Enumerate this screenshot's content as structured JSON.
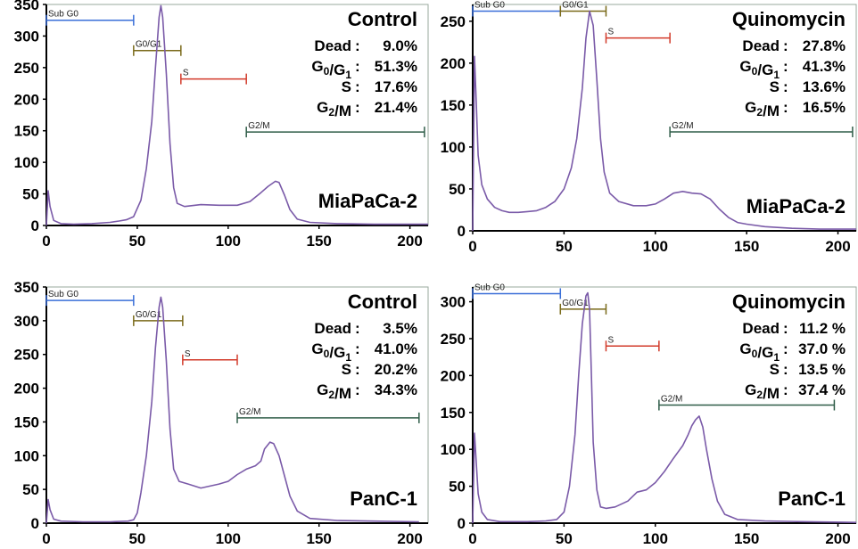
{
  "chart_data": [
    {
      "type": "line",
      "title": "Control",
      "cell_line": "MiaPaCa-2",
      "xlim": [
        0,
        210
      ],
      "ylim": [
        0,
        350
      ],
      "x_ticks": [
        "0",
        "50",
        "100",
        "150",
        "200"
      ],
      "y_ticks": [
        "0",
        "50",
        "100",
        "150",
        "200",
        "250",
        "300",
        "350"
      ],
      "stats": [
        {
          "label": "Dead",
          "value": "9.0%"
        },
        {
          "label": "G0/G1",
          "value": "51.3%"
        },
        {
          "label": "S",
          "value": "17.6%"
        },
        {
          "label": "G2/M",
          "value": "21.4%"
        }
      ],
      "gates": [
        {
          "label": "Sub G0",
          "start": 0,
          "end": 48,
          "y": 325,
          "color": "#3a6fd8"
        },
        {
          "label": "G0/G1",
          "start": 48,
          "end": 74,
          "y": 277,
          "color": "#7a6a1a"
        },
        {
          "label": "S",
          "start": 74,
          "end": 110,
          "y": 232,
          "color": "#d23a2a"
        },
        {
          "label": "G2/M",
          "start": 110,
          "end": 208,
          "y": 148,
          "color": "#2f5d48"
        }
      ],
      "series": [
        {
          "values": [
            [
              0,
              0
            ],
            [
              1,
              55
            ],
            [
              2,
              30
            ],
            [
              4,
              8
            ],
            [
              8,
              3
            ],
            [
              15,
              2
            ],
            [
              25,
              3
            ],
            [
              35,
              5
            ],
            [
              40,
              7
            ],
            [
              44,
              9
            ],
            [
              48,
              14
            ],
            [
              52,
              40
            ],
            [
              55,
              90
            ],
            [
              58,
              165
            ],
            [
              60,
              250
            ],
            [
              62,
              330
            ],
            [
              63,
              348
            ],
            [
              64,
              330
            ],
            [
              66,
              240
            ],
            [
              68,
              130
            ],
            [
              70,
              60
            ],
            [
              72,
              35
            ],
            [
              76,
              30
            ],
            [
              85,
              33
            ],
            [
              95,
              32
            ],
            [
              105,
              32
            ],
            [
              112,
              38
            ],
            [
              118,
              52
            ],
            [
              122,
              62
            ],
            [
              126,
              70
            ],
            [
              128,
              68
            ],
            [
              131,
              48
            ],
            [
              134,
              25
            ],
            [
              138,
              10
            ],
            [
              145,
              5
            ],
            [
              160,
              3
            ],
            [
              180,
              2
            ],
            [
              200,
              2
            ],
            [
              210,
              2
            ]
          ]
        }
      ]
    },
    {
      "type": "line",
      "title": "Quinomycin",
      "cell_line": "MiaPaCa-2",
      "xlim": [
        0,
        210
      ],
      "ylim": [
        0,
        270
      ],
      "x_ticks": [
        "0",
        "50",
        "100",
        "150",
        "200"
      ],
      "y_ticks": [
        "0",
        "50",
        "100",
        "150",
        "200",
        "250"
      ],
      "stats": [
        {
          "label": "Dead",
          "value": "27.8%"
        },
        {
          "label": "G0/G1",
          "value": "41.3%"
        },
        {
          "label": "S",
          "value": "13.6%"
        },
        {
          "label": "G2/M",
          "value": "16.5%"
        }
      ],
      "gates": [
        {
          "label": "Sub G0",
          "start": 0,
          "end": 48,
          "y": 262,
          "color": "#3a6fd8"
        },
        {
          "label": "G0/G1",
          "start": 48,
          "end": 73,
          "y": 262,
          "color": "#7a6a1a"
        },
        {
          "label": "S",
          "start": 73,
          "end": 108,
          "y": 230,
          "color": "#d23a2a"
        },
        {
          "label": "G2/M",
          "start": 108,
          "end": 208,
          "y": 118,
          "color": "#2f5d48"
        }
      ],
      "series": [
        {
          "values": [
            [
              0,
              0
            ],
            [
              1,
              208
            ],
            [
              2,
              150
            ],
            [
              3,
              90
            ],
            [
              5,
              55
            ],
            [
              8,
              38
            ],
            [
              12,
              28
            ],
            [
              16,
              24
            ],
            [
              20,
              22
            ],
            [
              25,
              22
            ],
            [
              30,
              23
            ],
            [
              35,
              24
            ],
            [
              40,
              28
            ],
            [
              45,
              35
            ],
            [
              50,
              50
            ],
            [
              54,
              75
            ],
            [
              57,
              110
            ],
            [
              60,
              170
            ],
            [
              62,
              230
            ],
            [
              64,
              262
            ],
            [
              66,
              245
            ],
            [
              68,
              180
            ],
            [
              70,
              110
            ],
            [
              72,
              70
            ],
            [
              75,
              45
            ],
            [
              80,
              35
            ],
            [
              88,
              30
            ],
            [
              95,
              30
            ],
            [
              100,
              32
            ],
            [
              105,
              38
            ],
            [
              110,
              45
            ],
            [
              115,
              47
            ],
            [
              120,
              45
            ],
            [
              125,
              44
            ],
            [
              130,
              38
            ],
            [
              135,
              26
            ],
            [
              140,
              16
            ],
            [
              145,
              10
            ],
            [
              150,
              8
            ],
            [
              160,
              5
            ],
            [
              175,
              3
            ],
            [
              190,
              2
            ],
            [
              210,
              2
            ]
          ]
        }
      ]
    },
    {
      "type": "line",
      "title": "Control",
      "cell_line": "PanC-1",
      "xlim": [
        0,
        210
      ],
      "ylim": [
        0,
        350
      ],
      "x_ticks": [
        "0",
        "50",
        "100",
        "150",
        "200"
      ],
      "y_ticks": [
        "0",
        "50",
        "100",
        "150",
        "200",
        "250",
        "300",
        "350"
      ],
      "stats": [
        {
          "label": "Dead",
          "value": "3.5%"
        },
        {
          "label": "G0/G1",
          "value": "41.0%"
        },
        {
          "label": "S",
          "value": "20.2%"
        },
        {
          "label": "G2/M",
          "value": "34.3%"
        }
      ],
      "gates": [
        {
          "label": "Sub G0",
          "start": 0,
          "end": 48,
          "y": 330,
          "color": "#3a6fd8"
        },
        {
          "label": "G0/G1",
          "start": 48,
          "end": 75,
          "y": 300,
          "color": "#7a6a1a"
        },
        {
          "label": "S",
          "start": 75,
          "end": 105,
          "y": 242,
          "color": "#d23a2a"
        },
        {
          "label": "G2/M",
          "start": 105,
          "end": 205,
          "y": 156,
          "color": "#2f5d48"
        }
      ],
      "series": [
        {
          "values": [
            [
              0,
              0
            ],
            [
              1,
              35
            ],
            [
              2,
              20
            ],
            [
              4,
              6
            ],
            [
              8,
              3
            ],
            [
              20,
              2
            ],
            [
              35,
              2
            ],
            [
              45,
              3
            ],
            [
              48,
              5
            ],
            [
              50,
              15
            ],
            [
              52,
              45
            ],
            [
              55,
              100
            ],
            [
              58,
              180
            ],
            [
              60,
              260
            ],
            [
              62,
              320
            ],
            [
              63,
              335
            ],
            [
              64,
              320
            ],
            [
              66,
              240
            ],
            [
              68,
              140
            ],
            [
              70,
              80
            ],
            [
              73,
              62
            ],
            [
              78,
              58
            ],
            [
              85,
              52
            ],
            [
              90,
              55
            ],
            [
              95,
              58
            ],
            [
              100,
              62
            ],
            [
              105,
              72
            ],
            [
              110,
              80
            ],
            [
              115,
              85
            ],
            [
              118,
              92
            ],
            [
              120,
              110
            ],
            [
              123,
              120
            ],
            [
              125,
              118
            ],
            [
              128,
              100
            ],
            [
              131,
              70
            ],
            [
              134,
              40
            ],
            [
              138,
              18
            ],
            [
              145,
              7
            ],
            [
              160,
              4
            ],
            [
              180,
              3
            ],
            [
              205,
              2
            ]
          ]
        }
      ]
    },
    {
      "type": "line",
      "title": "Quinomycin",
      "cell_line": "PanC-1",
      "xlim": [
        0,
        210
      ],
      "ylim": [
        0,
        320
      ],
      "x_ticks": [
        "0",
        "50",
        "100",
        "150",
        "200"
      ],
      "y_ticks": [
        "0",
        "50",
        "100",
        "150",
        "200",
        "250",
        "300"
      ],
      "stats": [
        {
          "label": "Dead",
          "value": "11.2 %"
        },
        {
          "label": "G0/G1",
          "value": "37.0 %"
        },
        {
          "label": "S",
          "value": "13.5 %"
        },
        {
          "label": "G2/M",
          "value": "37.4 %"
        }
      ],
      "gates": [
        {
          "label": "Sub G0",
          "start": 0,
          "end": 48,
          "y": 311,
          "color": "#3a6fd8"
        },
        {
          "label": "G0/G1",
          "start": 48,
          "end": 73,
          "y": 290,
          "color": "#7a6a1a"
        },
        {
          "label": "S",
          "start": 73,
          "end": 102,
          "y": 240,
          "color": "#d23a2a"
        },
        {
          "label": "G2/M",
          "start": 102,
          "end": 198,
          "y": 160,
          "color": "#2f5d48"
        }
      ],
      "series": [
        {
          "values": [
            [
              0,
              0
            ],
            [
              1,
              122
            ],
            [
              2,
              80
            ],
            [
              3,
              40
            ],
            [
              5,
              15
            ],
            [
              8,
              5
            ],
            [
              15,
              2
            ],
            [
              30,
              2
            ],
            [
              40,
              3
            ],
            [
              46,
              5
            ],
            [
              50,
              15
            ],
            [
              53,
              50
            ],
            [
              56,
              120
            ],
            [
              58,
              200
            ],
            [
              60,
              270
            ],
            [
              62,
              308
            ],
            [
              63,
              312
            ],
            [
              64,
              290
            ],
            [
              65,
              200
            ],
            [
              66,
              110
            ],
            [
              68,
              45
            ],
            [
              70,
              22
            ],
            [
              73,
              20
            ],
            [
              78,
              22
            ],
            [
              85,
              30
            ],
            [
              90,
              42
            ],
            [
              95,
              45
            ],
            [
              100,
              55
            ],
            [
              105,
              70
            ],
            [
              110,
              88
            ],
            [
              115,
              105
            ],
            [
              118,
              120
            ],
            [
              120,
              132
            ],
            [
              122,
              140
            ],
            [
              124,
              145
            ],
            [
              126,
              130
            ],
            [
              128,
              100
            ],
            [
              131,
              60
            ],
            [
              134,
              30
            ],
            [
              138,
              12
            ],
            [
              145,
              5
            ],
            [
              160,
              3
            ],
            [
              180,
              2
            ],
            [
              210,
              1
            ]
          ]
        }
      ]
    }
  ]
}
